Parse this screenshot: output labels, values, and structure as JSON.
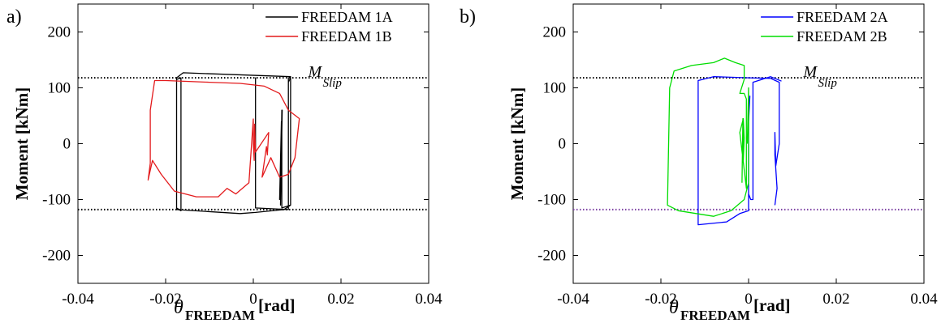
{
  "chart_data": [
    {
      "type": "line",
      "panel_label": "a)",
      "ylabel": "Moment [kNm]",
      "xlabel": {
        "symbol": "θ",
        "subscript": "FREEDAM",
        "unit": "[rad]"
      },
      "xlim": [
        -0.04,
        0.04
      ],
      "ylim": [
        -250,
        250
      ],
      "xticks": [
        -0.04,
        -0.02,
        0,
        0.02,
        0.04
      ],
      "xtick_labels": [
        "-0.04",
        "-0.02",
        "0",
        "0.02",
        "0.04"
      ],
      "yticks": [
        -200,
        -100,
        0,
        100,
        200
      ],
      "ytick_labels": [
        "-200",
        "-100",
        "0",
        "100",
        "200"
      ],
      "legend_position": "top-right",
      "reference_lines": [
        {
          "y": 118,
          "color": "#000000",
          "label": "M",
          "label_sub": "Slip"
        },
        {
          "y": -118,
          "color": "#000000"
        }
      ],
      "series": [
        {
          "name": "FREEDAM 1A",
          "color": "#000000",
          "points": [
            [
              0.0005,
              80
            ],
            [
              0.0005,
              118
            ],
            [
              0.0005,
              -60
            ],
            [
              0.0005,
              -115
            ],
            [
              0.008,
              -118
            ],
            [
              0.008,
              118
            ],
            [
              0.008,
              110
            ],
            [
              0.0085,
              118
            ],
            [
              0.0085,
              -110
            ],
            [
              0.007,
              -118
            ],
            [
              0.0005,
              -123
            ],
            [
              -0.003,
              -125
            ],
            [
              -0.0175,
              -118
            ],
            [
              -0.0175,
              115
            ],
            [
              -0.0165,
              118
            ],
            [
              -0.0165,
              -120
            ],
            [
              -0.0175,
              -115
            ],
            [
              -0.0175,
              118
            ],
            [
              -0.016,
              127
            ],
            [
              0.0085,
              120
            ],
            [
              0.0085,
              -110
            ],
            [
              0.0065,
              -115
            ],
            [
              0.0065,
              60
            ],
            [
              0.0062,
              -110
            ],
            [
              0.0066,
              60
            ],
            [
              0.006,
              -100
            ],
            [
              0.0064,
              40
            ]
          ]
        },
        {
          "name": "FREEDAM 1B",
          "color": "#e31a1c",
          "points": [
            [
              0.0,
              45
            ],
            [
              0.0,
              0
            ],
            [
              0.0002,
              -30
            ],
            [
              0.0003,
              35
            ],
            [
              0.0005,
              -15
            ],
            [
              0.0035,
              20
            ],
            [
              0.0032,
              -20
            ],
            [
              0.003,
              -5
            ],
            [
              0.002,
              -60
            ],
            [
              0.004,
              -25
            ],
            [
              0.006,
              -60
            ],
            [
              0.008,
              -55
            ],
            [
              0.0095,
              -25
            ],
            [
              0.0105,
              45
            ],
            [
              0.008,
              60
            ],
            [
              0.006,
              90
            ],
            [
              0.0025,
              103
            ],
            [
              -0.003,
              108
            ],
            [
              -0.01,
              110
            ],
            [
              -0.02,
              113
            ],
            [
              -0.0225,
              113
            ],
            [
              -0.0235,
              60
            ],
            [
              -0.0235,
              -35
            ],
            [
              -0.024,
              -65
            ],
            [
              -0.023,
              -30
            ],
            [
              -0.021,
              -55
            ],
            [
              -0.018,
              -85
            ],
            [
              -0.013,
              -95
            ],
            [
              -0.008,
              -95
            ],
            [
              -0.006,
              -80
            ],
            [
              -0.004,
              -90
            ],
            [
              -0.001,
              -70
            ],
            [
              0.0,
              45
            ]
          ]
        }
      ]
    },
    {
      "type": "line",
      "panel_label": "b)",
      "ylabel": "Moment [kNm]",
      "xlabel": {
        "symbol": "θ",
        "subscript": "FREEDAM",
        "unit": "[rad]"
      },
      "xlim": [
        -0.04,
        0.04
      ],
      "ylim": [
        -250,
        250
      ],
      "xticks": [
        -0.04,
        -0.02,
        0,
        0.02,
        0.04
      ],
      "xtick_labels": [
        "-0.04",
        "-0.02",
        "0",
        "0.02",
        "0.04"
      ],
      "yticks": [
        -200,
        -100,
        0,
        100,
        200
      ],
      "ytick_labels": [
        "-200",
        "-100",
        "0",
        "100",
        "200"
      ],
      "legend_position": "top-right",
      "reference_lines": [
        {
          "y": 118,
          "color": "#000000",
          "label": "M",
          "label_sub": "Slip"
        },
        {
          "y": -118,
          "color": "#7b3fa3"
        }
      ],
      "series": [
        {
          "name": "FREEDAM 2A",
          "color": "#0000ff",
          "points": [
            [
              0.006,
              -110
            ],
            [
              0.0065,
              -80
            ],
            [
              0.006,
              -20
            ],
            [
              0.006,
              20
            ],
            [
              0.0062,
              -40
            ],
            [
              0.007,
              0
            ],
            [
              0.007,
              110
            ],
            [
              0.005,
              117
            ],
            [
              0.0,
              118
            ],
            [
              -0.008,
              120
            ],
            [
              -0.0115,
              113
            ],
            [
              -0.0115,
              -100
            ],
            [
              -0.0115,
              -145
            ],
            [
              -0.005,
              -140
            ],
            [
              -0.002,
              -125
            ],
            [
              0.0,
              -120
            ],
            [
              0.0,
              40
            ],
            [
              0.0003,
              85
            ],
            [
              0.0,
              40
            ],
            [
              0.0,
              -90
            ],
            [
              0.0005,
              -100
            ],
            [
              0.001,
              -100
            ],
            [
              0.001,
              110
            ],
            [
              0.005,
              120
            ],
            [
              0.0075,
              112
            ]
          ]
        },
        {
          "name": "FREEDAM 2B",
          "color": "#00dd00",
          "points": [
            [
              -0.0015,
              -70
            ],
            [
              -0.0013,
              45
            ],
            [
              -0.0012,
              -30
            ],
            [
              -0.001,
              10
            ],
            [
              -0.0012,
              45
            ],
            [
              -0.002,
              20
            ],
            [
              -0.0005,
              -80
            ],
            [
              -0.0005,
              80
            ],
            [
              -0.001,
              90
            ],
            [
              -0.002,
              90
            ],
            [
              -0.001,
              115
            ],
            [
              -0.001,
              140
            ],
            [
              -0.003,
              145
            ],
            [
              -0.0055,
              153
            ],
            [
              -0.008,
              145
            ],
            [
              -0.013,
              140
            ],
            [
              -0.017,
              130
            ],
            [
              -0.018,
              100
            ],
            [
              -0.0185,
              -110
            ],
            [
              -0.016,
              -120
            ],
            [
              -0.008,
              -130
            ],
            [
              -0.004,
              -120
            ],
            [
              -0.001,
              -100
            ],
            [
              0.0,
              -70
            ],
            [
              0.0,
              100
            ],
            [
              -0.0003,
              0
            ]
          ]
        }
      ]
    }
  ]
}
